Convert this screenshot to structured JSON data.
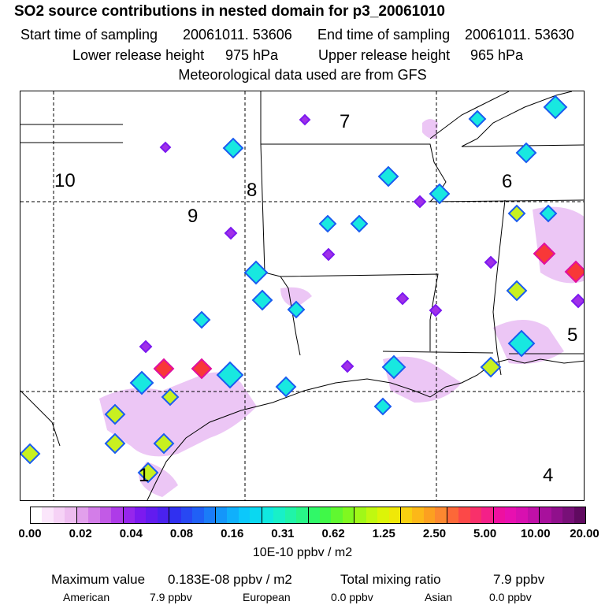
{
  "header": {
    "title": "SO2 source contributions in nested domain for p3_20061010",
    "start_label": "Start time of sampling",
    "start_value": "20061011. 53606",
    "end_label": "End time of sampling",
    "end_value": "20061011. 53630",
    "lower_label": "Lower release height",
    "lower_value": "975 hPa",
    "upper_label": "Upper release height",
    "upper_value": "965 hPa",
    "met_note": "Meteorological data used are from GFS"
  },
  "map": {
    "region_numbers": [
      "7",
      "10",
      "8",
      "6",
      "9",
      "5",
      "4",
      "1"
    ]
  },
  "colorbar": {
    "ticks": [
      "0.00",
      "0.02",
      "0.04",
      "0.08",
      "0.16",
      "0.31",
      "0.62",
      "1.25",
      "2.50",
      "5.00",
      "10.00",
      "20.00"
    ],
    "colors": [
      "#ffffff",
      "#fbe6fb",
      "#f6d2f6",
      "#eebdf0",
      "#e2a0ec",
      "#d37de8",
      "#c25ae6",
      "#ae3be8",
      "#9626ec",
      "#7c1aef",
      "#621cef",
      "#4a22ee",
      "#3030f0",
      "#2848f3",
      "#2060f6",
      "#1a7cf8",
      "#1496fa",
      "#10b0fb",
      "#0cc8fb",
      "#0ad8f0",
      "#10e8e0",
      "#18f0c8",
      "#20f4a8",
      "#28f688",
      "#30f868",
      "#40f848",
      "#60f830",
      "#80f820",
      "#a0f818",
      "#c0f810",
      "#dcf408",
      "#f0e808",
      "#f8d010",
      "#fcb818",
      "#fca020",
      "#fc8830",
      "#fc6838",
      "#fc4848",
      "#f8306a",
      "#f42088",
      "#ee10a0",
      "#e810b0",
      "#d810b0",
      "#c010a8",
      "#a8109c",
      "#90108c",
      "#781078",
      "#600a60"
    ],
    "unit": "10E-10 ppbv / m2"
  },
  "footer": {
    "max_label": "Maximum value",
    "max_value": "0.183E-08 ppbv / m2",
    "total_label": "Total mixing ratio",
    "total_value": "7.9 ppbv",
    "american_label": "American",
    "american_value": "7.9 ppbv",
    "european_label": "European",
    "european_value": "0.0 ppbv",
    "asian_label": "Asian",
    "asian_value": "0.0 ppbv"
  }
}
